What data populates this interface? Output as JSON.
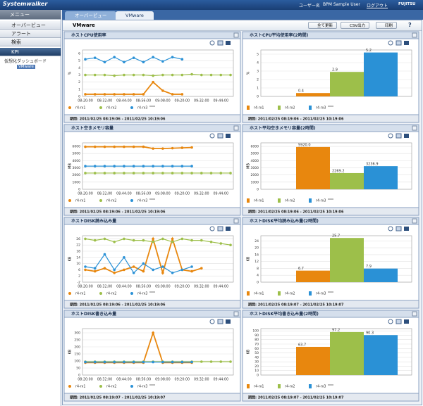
{
  "header": {
    "logo": "Systemwalker",
    "user_label": "ユーザー名",
    "user": "BPM Sample User",
    "logout": "ログアウト",
    "brand": "FUJITSU"
  },
  "sidebar": {
    "title": "メニュー",
    "items": [
      "オーバービュー",
      "アラート",
      "検索",
      "KPI"
    ],
    "tree": {
      "folder": "仮想化ダッシュボード",
      "leaf": "VMware"
    }
  },
  "tabs": [
    "オーバービュー",
    "VMware"
  ],
  "panel": {
    "title": "VMware",
    "buttons": [
      "全て更新",
      "CSV出力",
      "印刷"
    ],
    "help": "?"
  },
  "chart_data": [
    {
      "type": "line",
      "title": "ホストCPU使用率",
      "y_label": "%",
      "categories": [
        "08:20:00",
        null,
        "08:32:00",
        null,
        "08:44:00",
        null,
        "08:56:00",
        null,
        "09:08:00",
        null,
        "09:20:00",
        null,
        "09:32:00",
        null,
        "09:44:00",
        null
      ],
      "series": [
        {
          "name": "r4-rx1",
          "color": "#e8870e",
          "values": [
            0.3,
            0.3,
            0.3,
            0.3,
            0.3,
            0.3,
            0.3,
            2,
            0.8,
            0.3,
            0.3,
            null,
            null,
            null,
            null,
            null
          ]
        },
        {
          "name": "r4-rx2",
          "color": "#9dbf4a",
          "values": [
            3,
            3,
            3,
            2.9,
            3,
            3,
            3,
            2.9,
            3,
            3,
            3,
            3.1,
            3,
            3,
            3,
            3
          ]
        },
        {
          "name": "r4-rx3",
          "color": "#2a91d6",
          "values": [
            5.2,
            5.4,
            4.8,
            5.5,
            4.8,
            5.4,
            4.8,
            5.5,
            4.9,
            5.5,
            5.2,
            null,
            null,
            null,
            null,
            null
          ]
        }
      ],
      "ylim": [
        0,
        6.5
      ],
      "yticks": [
        0,
        1,
        2,
        3,
        4,
        5,
        6
      ],
      "grid": true,
      "period": "期間: 2011/02/25 08:19:06 - 2011/02/25 10:19:06"
    },
    {
      "type": "bar",
      "title": "ホストCPU平均使用率(2時間)",
      "y_label": "%",
      "series": [
        {
          "name": "r4-rx1",
          "color": "#e8870e",
          "values": [
            0.4
          ]
        },
        {
          "name": "r4-rx2",
          "color": "#9dbf4a",
          "values": [
            2.9
          ]
        },
        {
          "name": "r4-rx3",
          "color": "#2a91d6",
          "values": [
            5.2
          ]
        }
      ],
      "ylim": [
        0,
        5.5
      ],
      "yticks": [
        0,
        1,
        2,
        3,
        4,
        5
      ],
      "grid": true,
      "period": "期間: 2011/02/25 08:19:06 - 2011/02/25 10:19:06"
    },
    {
      "type": "line",
      "title": "ホスト空きメモリ容量",
      "y_label": "MB",
      "categories": [
        "08:20:00",
        null,
        "08:32:00",
        null,
        "08:44:00",
        null,
        "08:56:00",
        null,
        "09:08:00",
        null,
        "09:20:00",
        null,
        "09:32:00",
        null,
        "09:44:00",
        null
      ],
      "series": [
        {
          "name": "r4-rx1",
          "color": "#e8870e",
          "values": [
            5950,
            5950,
            5950,
            5950,
            5950,
            5950,
            5950,
            5700,
            5700,
            5750,
            5800,
            5850,
            null,
            null,
            null,
            null
          ]
        },
        {
          "name": "r4-rx2",
          "color": "#9dbf4a",
          "values": [
            2270,
            2270,
            2270,
            2270,
            2270,
            2270,
            2270,
            2270,
            2270,
            2270,
            2270,
            2270,
            2270,
            2270,
            2270,
            2270
          ]
        },
        {
          "name": "r4-rx3",
          "color": "#2a91d6",
          "values": [
            3240,
            3240,
            3240,
            3240,
            3240,
            3240,
            3240,
            3240,
            3240,
            3240,
            3240,
            3240,
            null,
            null,
            null,
            null
          ]
        }
      ],
      "ylim": [
        0,
        6500
      ],
      "yticks": [
        0,
        1000,
        2000,
        3000,
        4000,
        5000,
        6000
      ],
      "grid": true,
      "period": "期間: 2011/02/25 08:19:06 - 2011/02/25 10:19:06"
    },
    {
      "type": "bar",
      "title": "ホスト平均空きメモリ容量(2時間)",
      "y_label": "MB",
      "series": [
        {
          "name": "r4-rx1",
          "color": "#e8870e",
          "values": [
            5920
          ],
          "value_labels": [
            "5920.0"
          ]
        },
        {
          "name": "r4-rx2",
          "color": "#9dbf4a",
          "values": [
            2269.2
          ]
        },
        {
          "name": "r4-rx3",
          "color": "#2a91d6",
          "values": [
            3236.9
          ]
        }
      ],
      "ylim": [
        0,
        6500
      ],
      "yticks": [
        0,
        1000,
        2000,
        3000,
        4000,
        5000,
        6000
      ],
      "grid": true,
      "period": "期間: 2011/02/25 08:19:06 - 2011/02/25 10:19:06"
    },
    {
      "type": "line",
      "title": "ホストDISK読み込み量",
      "y_label": "KB",
      "categories": [
        "08:20:00",
        null,
        "08:32:00",
        null,
        "08:44:00",
        null,
        "08:56:00",
        null,
        "09:08:00",
        null,
        "09:20:00",
        null,
        "09:32:00",
        null,
        "09:44:00",
        null
      ],
      "series": [
        {
          "name": "r4-rx1",
          "color": "#e8870e",
          "values": [
            6,
            5,
            7,
            4,
            6,
            8,
            5,
            26,
            4,
            26,
            6,
            5,
            7,
            null,
            null,
            null
          ]
        },
        {
          "name": "r4-rx2",
          "color": "#9dbf4a",
          "values": [
            26,
            25,
            26,
            24,
            26,
            25,
            25,
            24,
            26,
            24,
            26,
            25,
            25,
            24,
            23,
            22
          ]
        },
        {
          "name": "r4-rx3",
          "color": "#2a91d6",
          "values": [
            8,
            7,
            16,
            6,
            14,
            4,
            10,
            6,
            8,
            4,
            6,
            8,
            null,
            null,
            null,
            null
          ]
        }
      ],
      "ylim": [
        -2,
        28
      ],
      "yticks": [
        -2,
        2,
        6,
        10,
        14,
        18,
        22,
        26
      ],
      "grid": true,
      "period": "期間: 2011/02/25 08:19:06 - 2011/02/25 10:19:06"
    },
    {
      "type": "bar",
      "title": "ホストDISK平均読み込み量(2時間)",
      "y_label": "KB",
      "series": [
        {
          "name": "r4-rx1",
          "color": "#e8870e",
          "values": [
            6.7
          ]
        },
        {
          "name": "r4-rx2",
          "color": "#9dbf4a",
          "values": [
            25.7
          ]
        },
        {
          "name": "r4-rx3",
          "color": "#2a91d6",
          "values": [
            7.9
          ]
        }
      ],
      "ylim": [
        0,
        27
      ],
      "yticks": [
        0,
        4,
        8,
        12,
        16,
        20,
        24
      ],
      "grid": true,
      "period": "期間: 2011/02/25 08:19:07 - 2011/02/25 10:19:07"
    },
    {
      "type": "line",
      "title": "ホストDISK書き込み量",
      "y_label": "KB",
      "categories": [
        "08:20:00",
        null,
        "08:32:00",
        null,
        "08:44:00",
        null,
        "08:56:00",
        null,
        "09:08:00",
        null,
        "09:20:00",
        null,
        "09:32:00",
        null,
        "09:44:00",
        null
      ],
      "series": [
        {
          "name": "r4-rx1",
          "color": "#e8870e",
          "values": [
            88,
            88,
            88,
            88,
            88,
            88,
            88,
            300,
            88,
            88,
            88,
            88,
            null,
            null,
            null,
            null
          ]
        },
        {
          "name": "r4-rx2",
          "color": "#9dbf4a",
          "values": [
            95,
            95,
            95,
            95,
            95,
            95,
            95,
            95,
            95,
            95,
            95,
            95,
            95,
            95,
            95,
            95
          ]
        },
        {
          "name": "r4-rx3",
          "color": "#2a91d6",
          "values": [
            92,
            92,
            92,
            92,
            92,
            92,
            92,
            92,
            92,
            92,
            92,
            92,
            null,
            null,
            null,
            null
          ]
        }
      ],
      "ylim": [
        0,
        330
      ],
      "yticks": [
        0,
        50,
        100,
        150,
        200,
        250,
        300
      ],
      "grid": true,
      "period": "期間: 2011/02/25 08:19:07 - 2011/02/25 10:19:07"
    },
    {
      "type": "bar",
      "title": "ホストDISK平均書き込み量(2時間)",
      "y_label": "KB",
      "series": [
        {
          "name": "r4-rx1",
          "color": "#e8870e",
          "values": [
            63.7
          ]
        },
        {
          "name": "r4-rx2",
          "color": "#9dbf4a",
          "values": [
            97.2
          ]
        },
        {
          "name": "r4-rx3",
          "color": "#2a91d6",
          "values": [
            90.3
          ]
        }
      ],
      "ylim": [
        0,
        105
      ],
      "yticks": [
        0,
        10,
        20,
        30,
        40,
        50,
        60,
        70,
        80,
        90,
        100
      ],
      "grid": true,
      "period": "期間: 2011/02/25 08:19:07 - 2011/02/25 10:19:07"
    }
  ]
}
